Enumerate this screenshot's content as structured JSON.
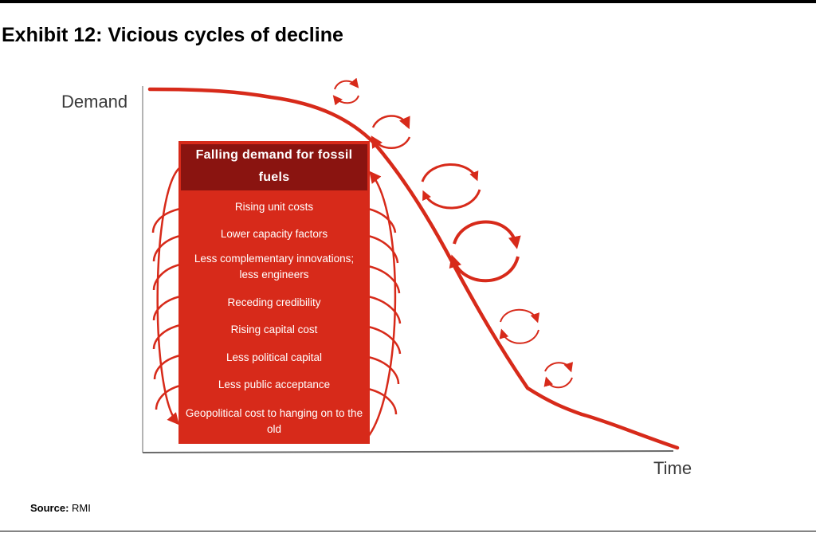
{
  "header": {
    "title": "Exhibit 12: Vicious cycles of decline"
  },
  "axes": {
    "y_label": "Demand",
    "x_label": "Time"
  },
  "box": {
    "heading": "Falling demand for fossil fuels",
    "items": [
      "Rising unit costs",
      "Lower capacity factors",
      "Less complementary innovations; less engineers",
      "Receding credibility",
      "Rising capital cost",
      "Less political capital",
      "Less public acceptance",
      "Geopolitical cost to hanging on to the old"
    ]
  },
  "footer": {
    "source_label": "Source:",
    "source_value": "RMI"
  },
  "colors": {
    "accent": "#d72a1a",
    "heading_bg": "#8a1410"
  }
}
